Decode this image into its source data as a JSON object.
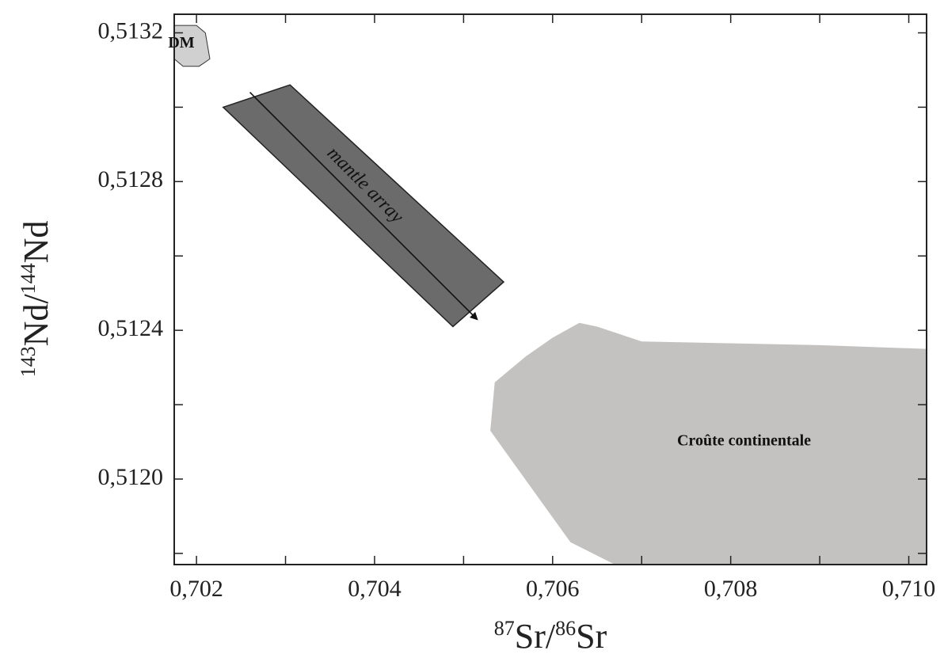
{
  "chart_data": {
    "type": "scatter",
    "xlabel": {
      "sup1": "87",
      "base1": "Sr/",
      "sup2": "86",
      "base2": "Sr"
    },
    "ylabel": {
      "sup1": "143",
      "base1": "Nd/",
      "sup2": "144",
      "base2": "Nd"
    },
    "xlim": [
      0.70175,
      0.7102
    ],
    "ylim": [
      0.51177,
      0.51325
    ],
    "x_ticks": [
      {
        "value": 0.702,
        "label": "0,702"
      },
      {
        "value": 0.703,
        "label": ""
      },
      {
        "value": 0.704,
        "label": "0,704"
      },
      {
        "value": 0.705,
        "label": ""
      },
      {
        "value": 0.706,
        "label": "0,706"
      },
      {
        "value": 0.707,
        "label": ""
      },
      {
        "value": 0.708,
        "label": "0,708"
      },
      {
        "value": 0.709,
        "label": ""
      },
      {
        "value": 0.71,
        "label": "0,710"
      }
    ],
    "y_ticks": [
      {
        "value": 0.5118,
        "label": ""
      },
      {
        "value": 0.512,
        "label": "0,5120"
      },
      {
        "value": 0.5122,
        "label": ""
      },
      {
        "value": 0.5124,
        "label": "0,5124"
      },
      {
        "value": 0.5126,
        "label": ""
      },
      {
        "value": 0.5128,
        "label": "0,5128"
      },
      {
        "value": 0.513,
        "label": ""
      },
      {
        "value": 0.5132,
        "label": "0,5132"
      }
    ],
    "grid": false,
    "regions": [
      {
        "name": "DM",
        "label": "DM",
        "color": "#d0d0d0",
        "polygon": [
          [
            0.70175,
            0.51322
          ],
          [
            0.702,
            0.51322
          ],
          [
            0.7021,
            0.5132
          ],
          [
            0.70215,
            0.51313
          ],
          [
            0.70203,
            0.51311
          ],
          [
            0.70185,
            0.51311
          ],
          [
            0.70175,
            0.51313
          ]
        ],
        "label_at": [
          0.70183,
          0.51317
        ]
      },
      {
        "name": "Croûte continentale",
        "label": "Croûte continentale",
        "color": "#c4c2c0",
        "polygon": [
          [
            0.706,
            0.51238
          ],
          [
            0.7063,
            0.51242
          ],
          [
            0.7065,
            0.51241
          ],
          [
            0.707,
            0.51237
          ],
          [
            0.709,
            0.51236
          ],
          [
            0.7102,
            0.51235
          ],
          [
            0.7102,
            0.51177
          ],
          [
            0.7067,
            0.51177
          ],
          [
            0.7062,
            0.51183
          ],
          [
            0.7056,
            0.51203
          ],
          [
            0.7053,
            0.51213
          ],
          [
            0.70535,
            0.51226
          ],
          [
            0.7057,
            0.51233
          ]
        ],
        "label_at": [
          0.70815,
          0.5121
        ]
      }
    ],
    "mantle_array": {
      "label": "mantle array",
      "color": "#6b6b6b",
      "polygon": [
        [
          0.7023,
          0.513
        ],
        [
          0.70305,
          0.51306
        ],
        [
          0.70545,
          0.51253
        ],
        [
          0.70488,
          0.51241
        ]
      ],
      "arrow": {
        "from": [
          0.7026,
          0.51304
        ],
        "to": [
          0.70515,
          0.51243
        ]
      },
      "label_at": [
        0.70385,
        0.51278
      ]
    }
  }
}
